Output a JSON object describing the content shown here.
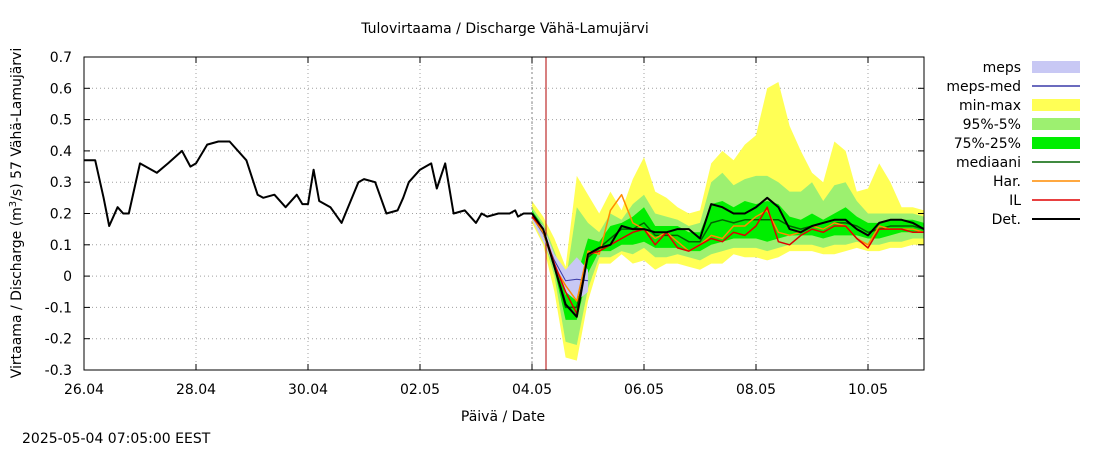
{
  "chart_data": {
    "type": "area",
    "title": "Tulovirtaama / Discharge  Vähä-Lamujärvi",
    "xlabel": "Päivä / Date",
    "ylabel_main": "Virtaama / Discharge (m",
    "ylabel_sup": "3",
    "ylabel_tail": "/s)  57 Vähä-Lamujärvi",
    "timestamp": "2025-05-04 07:05:00 EEST",
    "x_range_days": [
      0,
      15
    ],
    "ylim": [
      -0.3,
      0.7
    ],
    "y_ticks": [
      -0.3,
      -0.2,
      -0.1,
      0,
      0.1,
      0.2,
      0.3,
      0.4,
      0.5,
      0.6,
      0.7
    ],
    "y_tick_labels": [
      "-0.3",
      "-0.2",
      "-0.1",
      "0",
      "0.1",
      "0.2",
      "0.3",
      "0.4",
      "0.5",
      "0.6",
      "0.7"
    ],
    "x_ticks": [
      0,
      2,
      4,
      6,
      8,
      10,
      12,
      14
    ],
    "x_tick_labels": [
      "26.04",
      "28.04",
      "30.04",
      "02.05",
      "04.05",
      "06.05",
      "08.05",
      "10.05"
    ],
    "grid": true,
    "forecast_start_day": 8.0,
    "now_marker_day": 8.25,
    "legend_position": "right",
    "legend": [
      {
        "key": "meps",
        "label": "meps",
        "style": "band",
        "color": "#c8c8f4"
      },
      {
        "key": "meps_med",
        "label": "meps-med",
        "style": "line",
        "color": "#3a3aa8"
      },
      {
        "key": "minmax",
        "label": "min-max",
        "style": "band",
        "color": "#ffff55"
      },
      {
        "key": "p95_5",
        "label": "95%-5%",
        "style": "band",
        "color": "#9df070"
      },
      {
        "key": "p75_25",
        "label": "75%-25%",
        "style": "band",
        "color": "#00ee00"
      },
      {
        "key": "median",
        "label": "mediaani",
        "style": "line",
        "color": "#006400"
      },
      {
        "key": "har",
        "label": "Har.",
        "style": "line",
        "color": "#ff8c00"
      },
      {
        "key": "il",
        "label": "IL",
        "style": "line",
        "color": "#e00000"
      },
      {
        "key": "det",
        "label": "Det.",
        "style": "line",
        "color": "#000000"
      }
    ],
    "observed": {
      "x": [
        0,
        0.2,
        0.35,
        0.45,
        0.6,
        0.7,
        0.8,
        1.0,
        1.3,
        1.5,
        1.75,
        1.9,
        2.0,
        2.2,
        2.4,
        2.6,
        2.9,
        3.1,
        3.2,
        3.4,
        3.6,
        3.8,
        3.9,
        4.0,
        4.1,
        4.2,
        4.4,
        4.6,
        4.9,
        5.0,
        5.2,
        5.4,
        5.6,
        5.7,
        5.8,
        5.9,
        6.0,
        6.2,
        6.3,
        6.45,
        6.6,
        6.8,
        7.0,
        7.1,
        7.2,
        7.4,
        7.5,
        7.6,
        7.7,
        7.75,
        7.85,
        7.95,
        8.0
      ],
      "y": [
        0.37,
        0.37,
        0.25,
        0.16,
        0.22,
        0.2,
        0.2,
        0.36,
        0.33,
        0.36,
        0.4,
        0.35,
        0.36,
        0.42,
        0.43,
        0.43,
        0.37,
        0.26,
        0.25,
        0.26,
        0.22,
        0.26,
        0.23,
        0.23,
        0.34,
        0.24,
        0.22,
        0.17,
        0.3,
        0.31,
        0.3,
        0.2,
        0.21,
        0.25,
        0.3,
        0.32,
        0.34,
        0.36,
        0.28,
        0.36,
        0.2,
        0.21,
        0.17,
        0.2,
        0.19,
        0.2,
        0.2,
        0.2,
        0.21,
        0.19,
        0.2,
        0.2,
        0.2
      ]
    },
    "forecast_x": [
      8.0,
      8.2,
      8.4,
      8.6,
      8.8,
      9.0,
      9.2,
      9.4,
      9.6,
      9.8,
      10.0,
      10.2,
      10.4,
      10.6,
      10.8,
      11.0,
      11.2,
      11.4,
      11.6,
      11.8,
      12.0,
      12.2,
      12.4,
      12.6,
      12.8,
      13.0,
      13.2,
      13.4,
      13.6,
      13.8,
      14.0,
      14.2,
      14.4,
      14.6,
      14.8,
      15.0
    ],
    "meps": {
      "lower": [
        0.18,
        0.11,
        0.03,
        -0.05,
        -0.08,
        -0.05
      ],
      "upper": [
        0.2,
        0.16,
        0.07,
        0.02,
        0.06,
        0.02
      ]
    },
    "minmax": {
      "lower": [
        0.17,
        0.1,
        -0.05,
        -0.26,
        -0.27,
        -0.08,
        0.04,
        0.04,
        0.07,
        0.04,
        0.05,
        0.02,
        0.04,
        0.04,
        0.03,
        0.02,
        0.04,
        0.04,
        0.07,
        0.06,
        0.06,
        0.05,
        0.06,
        0.08,
        0.08,
        0.08,
        0.07,
        0.07,
        0.08,
        0.09,
        0.08,
        0.08,
        0.09,
        0.09,
        0.1,
        0.1
      ],
      "upper": [
        0.24,
        0.19,
        0.12,
        0.03,
        0.32,
        0.26,
        0.2,
        0.27,
        0.21,
        0.31,
        0.38,
        0.27,
        0.25,
        0.22,
        0.2,
        0.21,
        0.36,
        0.4,
        0.37,
        0.42,
        0.45,
        0.6,
        0.62,
        0.48,
        0.4,
        0.33,
        0.3,
        0.43,
        0.4,
        0.27,
        0.28,
        0.36,
        0.3,
        0.22,
        0.22,
        0.21
      ]
    },
    "p95_5": {
      "lower": [
        0.18,
        0.12,
        0.0,
        -0.21,
        -0.22,
        -0.04,
        0.06,
        0.06,
        0.08,
        0.07,
        0.09,
        0.06,
        0.06,
        0.07,
        0.06,
        0.05,
        0.07,
        0.08,
        0.09,
        0.09,
        0.09,
        0.08,
        0.09,
        0.1,
        0.1,
        0.1,
        0.09,
        0.1,
        0.1,
        0.11,
        0.1,
        0.1,
        0.11,
        0.11,
        0.12,
        0.12
      ],
      "upper": [
        0.22,
        0.17,
        0.08,
        -0.02,
        0.22,
        0.17,
        0.14,
        0.2,
        0.18,
        0.23,
        0.26,
        0.2,
        0.19,
        0.18,
        0.16,
        0.17,
        0.3,
        0.33,
        0.29,
        0.31,
        0.32,
        0.32,
        0.3,
        0.27,
        0.27,
        0.3,
        0.24,
        0.29,
        0.3,
        0.24,
        0.2,
        0.2,
        0.2,
        0.2,
        0.2,
        0.19
      ]
    },
    "p75_25": {
      "lower": [
        0.19,
        0.13,
        0.02,
        -0.14,
        -0.14,
        0.01,
        0.08,
        0.08,
        0.1,
        0.1,
        0.11,
        0.09,
        0.09,
        0.09,
        0.08,
        0.08,
        0.1,
        0.11,
        0.12,
        0.12,
        0.12,
        0.11,
        0.12,
        0.13,
        0.13,
        0.13,
        0.12,
        0.13,
        0.13,
        0.13,
        0.12,
        0.12,
        0.13,
        0.14,
        0.14,
        0.14
      ],
      "upper": [
        0.21,
        0.16,
        0.06,
        -0.06,
        0.0,
        0.12,
        0.11,
        0.16,
        0.17,
        0.19,
        0.22,
        0.16,
        0.16,
        0.16,
        0.14,
        0.14,
        0.23,
        0.24,
        0.22,
        0.24,
        0.23,
        0.24,
        0.23,
        0.19,
        0.18,
        0.2,
        0.18,
        0.2,
        0.22,
        0.19,
        0.17,
        0.17,
        0.18,
        0.18,
        0.18,
        0.17
      ]
    },
    "median": [
      0.2,
      0.14,
      0.03,
      -0.1,
      -0.1,
      0.06,
      0.09,
      0.12,
      0.15,
      0.15,
      0.17,
      0.13,
      0.13,
      0.13,
      0.11,
      0.11,
      0.17,
      0.18,
      0.17,
      0.18,
      0.18,
      0.18,
      0.18,
      0.16,
      0.15,
      0.16,
      0.15,
      0.17,
      0.17,
      0.16,
      0.14,
      0.15,
      0.16,
      0.16,
      0.16,
      0.15
    ],
    "har": [
      0.19,
      0.14,
      0.03,
      -0.03,
      -0.08,
      0.08,
      0.07,
      0.21,
      0.26,
      0.17,
      0.15,
      0.12,
      0.14,
      0.11,
      0.08,
      0.1,
      0.13,
      0.12,
      0.16,
      0.16,
      0.19,
      0.21,
      0.14,
      0.13,
      0.14,
      0.16,
      0.15,
      0.17,
      0.16,
      0.12,
      0.1,
      0.16,
      0.15,
      0.15,
      0.15,
      0.14
    ],
    "il": [
      0.19,
      0.15,
      0.04,
      -0.05,
      -0.12,
      0.07,
      0.08,
      0.1,
      0.12,
      0.14,
      0.15,
      0.1,
      0.14,
      0.09,
      0.08,
      0.1,
      0.12,
      0.11,
      0.14,
      0.13,
      0.16,
      0.22,
      0.11,
      0.1,
      0.13,
      0.15,
      0.14,
      0.16,
      0.16,
      0.12,
      0.09,
      0.15,
      0.15,
      0.15,
      0.14,
      0.14
    ],
    "det": [
      0.2,
      0.15,
      0.03,
      -0.09,
      -0.13,
      0.07,
      0.09,
      0.1,
      0.16,
      0.15,
      0.15,
      0.14,
      0.14,
      0.15,
      0.15,
      0.12,
      0.23,
      0.22,
      0.2,
      0.2,
      0.22,
      0.25,
      0.22,
      0.15,
      0.14,
      0.16,
      0.17,
      0.18,
      0.18,
      0.15,
      0.13,
      0.17,
      0.18,
      0.18,
      0.17,
      0.15
    ]
  }
}
